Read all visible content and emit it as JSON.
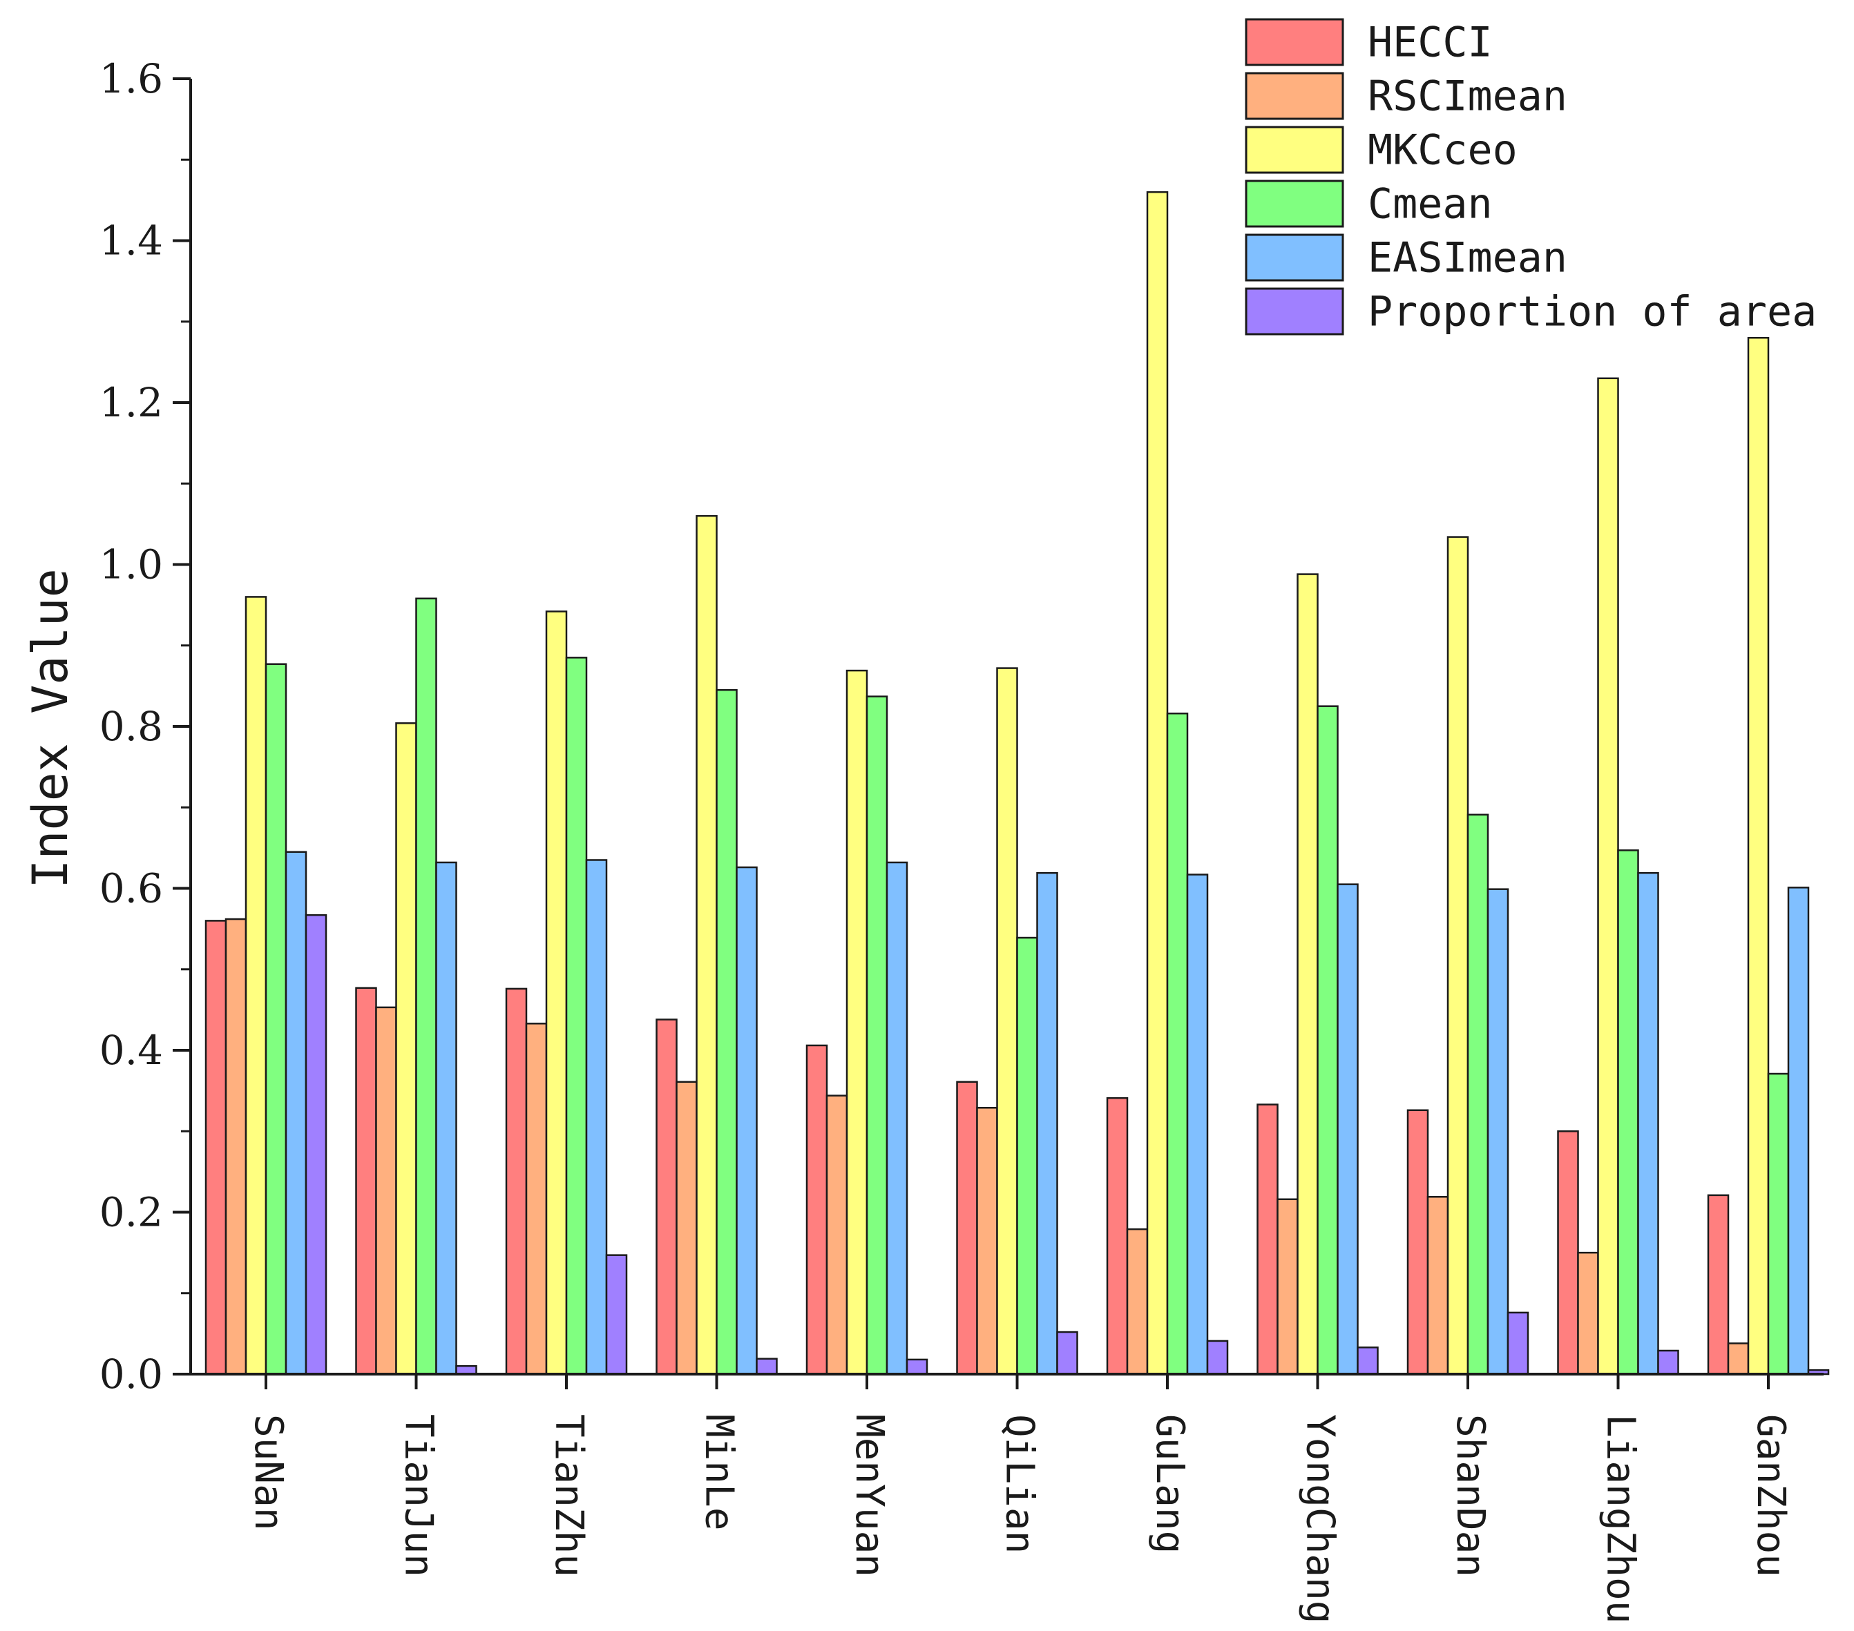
{
  "chart_data": {
    "type": "bar",
    "ylabel": "Index Value",
    "xlabel": "",
    "ylim": [
      0,
      1.6
    ],
    "yticks": [
      "0.0",
      "0.2",
      "0.4",
      "0.6",
      "0.8",
      "1.0",
      "1.2",
      "1.4",
      "1.6"
    ],
    "legend_position": "top-right",
    "categories": [
      "SuNan",
      "TianJun",
      "TianZhu",
      "MinLe",
      "MenYuan",
      "QiLian",
      "GuLang",
      "YongChang",
      "ShanDan",
      "LiangZhou",
      "GanZhou"
    ],
    "series": [
      {
        "name": "HECCI",
        "color": "#ff7f7f",
        "values": [
          0.56,
          0.477,
          0.476,
          0.438,
          0.406,
          0.361,
          0.341,
          0.333,
          0.326,
          0.3,
          0.221
        ]
      },
      {
        "name": "RSCImean",
        "color": "#ffb07f",
        "values": [
          0.562,
          0.453,
          0.433,
          0.361,
          0.344,
          0.329,
          0.179,
          0.216,
          0.219,
          0.15,
          0.038
        ]
      },
      {
        "name": "MKCceo",
        "color": "#ffff80",
        "values": [
          0.96,
          0.804,
          0.942,
          1.06,
          0.869,
          0.872,
          1.46,
          0.988,
          1.034,
          1.23,
          1.28
        ]
      },
      {
        "name": "Cmean",
        "color": "#80ff80",
        "values": [
          0.877,
          0.958,
          0.885,
          0.845,
          0.837,
          0.539,
          0.816,
          0.825,
          0.691,
          0.647,
          0.371
        ]
      },
      {
        "name": "EASImean",
        "color": "#80bfff",
        "values": [
          0.645,
          0.632,
          0.635,
          0.626,
          0.632,
          0.619,
          0.617,
          0.605,
          0.599,
          0.619,
          0.601
        ]
      },
      {
        "name": "Proportion of area",
        "color": "#a080ff",
        "values": [
          0.567,
          0.01,
          0.147,
          0.019,
          0.018,
          0.052,
          0.041,
          0.033,
          0.076,
          0.029,
          0.005
        ]
      }
    ]
  }
}
